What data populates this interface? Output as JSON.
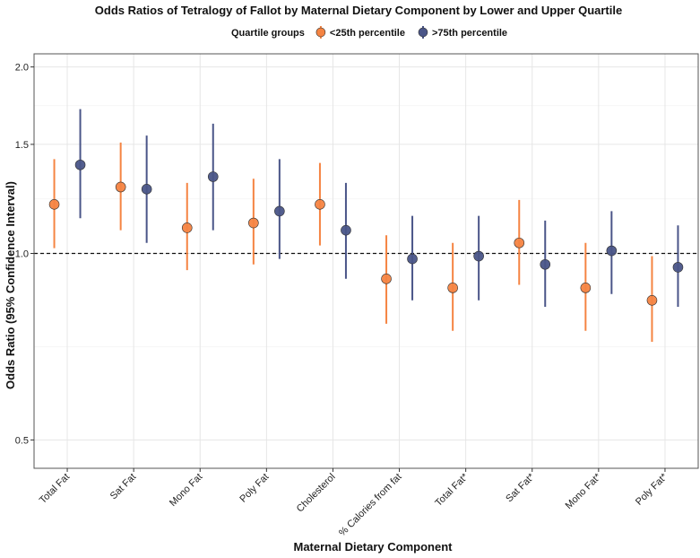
{
  "chart_data": {
    "type": "pointrange",
    "title": "Odds Ratios of Tetralogy of Fallot by Maternal Dietary Component by Lower and Upper Quartile",
    "xlabel": "Maternal Dietary Component",
    "ylabel": "Odds Ratio (95% Confidence Interval)",
    "y_scale": "log",
    "ylim": [
      0.45,
      2.1
    ],
    "y_ticks": [
      0.5,
      1.0,
      1.5,
      2.0
    ],
    "y_tick_labels": [
      "0.5",
      "1.0",
      "1.5",
      "2.0"
    ],
    "reference_line": 1.0,
    "legend": {
      "title": "Quartile groups",
      "position": "top"
    },
    "categories": [
      "Total Fat",
      "Sat Fat",
      "Mono Fat",
      "Poly Fat",
      "Cholesterol",
      "% Calories from fat",
      "Total Fat*",
      "Sat Fat*",
      "Mono Fat*",
      "Poly Fat*"
    ],
    "series": [
      {
        "name": "<25th percentile",
        "color": "#f58442",
        "estimate": [
          1.2,
          1.28,
          1.1,
          1.12,
          1.2,
          0.91,
          0.88,
          1.04,
          0.88,
          0.84
        ],
        "lower": [
          1.02,
          1.09,
          0.94,
          0.96,
          1.03,
          0.77,
          0.75,
          0.89,
          0.75,
          0.72
        ],
        "upper": [
          1.42,
          1.51,
          1.3,
          1.32,
          1.4,
          1.07,
          1.04,
          1.22,
          1.04,
          0.99
        ]
      },
      {
        "name": ">75th percentile",
        "color": "#4a5588",
        "estimate": [
          1.39,
          1.27,
          1.33,
          1.17,
          1.09,
          0.98,
          0.99,
          0.96,
          1.01,
          0.95
        ],
        "lower": [
          1.14,
          1.04,
          1.09,
          0.98,
          0.91,
          0.84,
          0.84,
          0.82,
          0.86,
          0.82
        ],
        "upper": [
          1.71,
          1.55,
          1.62,
          1.42,
          1.3,
          1.15,
          1.15,
          1.13,
          1.17,
          1.11
        ]
      }
    ]
  }
}
